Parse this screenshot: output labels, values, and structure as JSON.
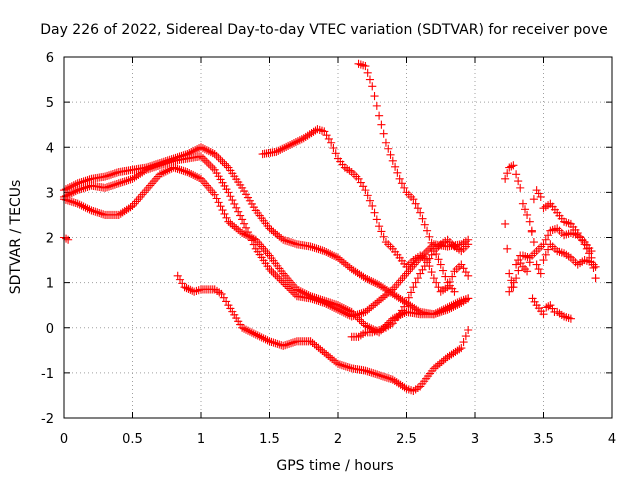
{
  "chart_data": {
    "type": "scatter",
    "title": "Day 226 of 2022, Sidereal Day-to-day VTEC variation (SDTVAR) for receiver pove",
    "xlabel": "GPS time / hours",
    "ylabel": "SDTVAR / TECUs",
    "xlim": [
      0,
      4
    ],
    "ylim": [
      -2,
      6
    ],
    "xticks": [
      "0",
      "0.5",
      "1",
      "1.5",
      "2",
      "2.5",
      "3",
      "3.5",
      "4"
    ],
    "yticks": [
      "-2",
      "-1",
      "0",
      "1",
      "2",
      "3",
      "4",
      "5",
      "6"
    ],
    "grid": true,
    "marker": "+",
    "color": "#ff0000",
    "series": [
      {
        "x": [
          0.0,
          0.1,
          0.2,
          0.3,
          0.4,
          0.5,
          0.6,
          0.7,
          0.8,
          0.9,
          1.0,
          1.1,
          1.2,
          1.3,
          1.4,
          1.5,
          1.6,
          1.7,
          1.8,
          1.9,
          2.0,
          2.1,
          2.2,
          2.3,
          2.4,
          2.5,
          2.6,
          2.7,
          2.8,
          2.9,
          2.95
        ],
        "values": [
          3.05,
          3.2,
          3.3,
          3.35,
          3.45,
          3.5,
          3.55,
          3.65,
          3.75,
          3.85,
          4.0,
          3.85,
          3.55,
          3.1,
          2.6,
          2.2,
          1.95,
          1.85,
          1.8,
          1.7,
          1.55,
          1.3,
          1.1,
          0.95,
          0.75,
          0.55,
          0.35,
          0.3,
          0.4,
          0.55,
          0.65
        ]
      },
      {
        "x": [
          0.0,
          0.1,
          0.2,
          0.3,
          0.4,
          0.5,
          0.6,
          0.7,
          0.8,
          0.9,
          1.0,
          1.1,
          1.2,
          1.3,
          1.4,
          1.5,
          1.6,
          1.7,
          1.8,
          1.9,
          2.0,
          2.1,
          2.2,
          2.3,
          2.4,
          2.5,
          2.6,
          2.7,
          2.8,
          2.9,
          2.95
        ],
        "values": [
          2.9,
          3.05,
          3.15,
          3.1,
          3.2,
          3.3,
          3.5,
          3.6,
          3.7,
          3.75,
          3.8,
          3.5,
          3.0,
          2.4,
          1.75,
          1.3,
          1.0,
          0.7,
          0.65,
          0.55,
          0.4,
          0.25,
          0.35,
          0.6,
          0.85,
          1.2,
          1.55,
          1.85,
          1.8,
          1.85,
          1.95
        ]
      },
      {
        "x": [
          0.0,
          0.1,
          0.2,
          0.3,
          0.4,
          0.5,
          0.6,
          0.7,
          0.8,
          0.9,
          1.0,
          1.1,
          1.2,
          1.3,
          1.4,
          1.5,
          1.6,
          1.7,
          1.8,
          1.9,
          2.0,
          2.1,
          2.2,
          2.3,
          2.4,
          2.5,
          2.6,
          2.7,
          2.8,
          2.9,
          2.95
        ],
        "values": [
          2.85,
          2.75,
          2.6,
          2.5,
          2.5,
          2.7,
          3.05,
          3.4,
          3.55,
          3.45,
          3.3,
          2.95,
          2.35,
          2.1,
          1.95,
          1.6,
          1.2,
          0.85,
          0.7,
          0.6,
          0.5,
          0.35,
          0.05,
          -0.1,
          0.2,
          0.35,
          0.3,
          0.3,
          0.45,
          0.6,
          0.65
        ]
      },
      {
        "x": [
          0.0,
          0.03
        ],
        "values": [
          2.0,
          1.95
        ]
      },
      {
        "x": [
          0.83,
          0.88,
          0.95,
          1.0,
          1.1,
          1.15,
          1.2,
          1.3,
          1.4,
          1.5,
          1.6,
          1.7,
          1.8,
          1.9,
          2.0,
          2.1,
          2.2,
          2.3,
          2.4,
          2.5,
          2.55,
          2.6,
          2.7,
          2.8,
          2.9,
          2.95
        ],
        "values": [
          1.15,
          0.9,
          0.8,
          0.85,
          0.85,
          0.75,
          0.5,
          0.0,
          -0.15,
          -0.3,
          -0.4,
          -0.3,
          -0.3,
          -0.55,
          -0.8,
          -0.9,
          -0.95,
          -1.05,
          -1.15,
          -1.35,
          -1.4,
          -1.3,
          -0.9,
          -0.65,
          -0.45,
          -0.05
        ]
      },
      {
        "x": [
          1.45,
          1.55,
          1.65,
          1.75,
          1.85,
          1.9,
          1.95,
          2.0,
          2.05,
          2.1,
          2.15,
          2.2,
          2.25,
          2.3,
          2.35,
          2.4,
          2.45,
          2.5,
          2.55,
          2.6,
          2.65,
          2.7,
          2.75,
          2.8,
          2.85,
          2.9,
          2.95
        ],
        "values": [
          3.85,
          3.9,
          4.05,
          4.2,
          4.4,
          4.35,
          4.1,
          3.75,
          3.55,
          3.45,
          3.3,
          3.05,
          2.7,
          2.25,
          1.9,
          1.75,
          1.55,
          1.35,
          1.5,
          1.6,
          1.5,
          1.1,
          0.8,
          0.9,
          1.25,
          1.4,
          1.15
        ]
      },
      {
        "x": [
          2.15,
          2.2,
          2.25,
          2.3,
          2.35,
          2.4,
          2.45,
          2.5,
          2.55,
          2.6,
          2.65,
          2.7,
          2.75,
          2.8,
          2.85
        ],
        "values": [
          5.85,
          5.8,
          5.35,
          4.7,
          4.1,
          3.7,
          3.3,
          3.0,
          2.85,
          2.55,
          2.15,
          1.75,
          1.4,
          1.0,
          0.8
        ]
      },
      {
        "x": [
          2.1,
          2.15,
          2.2,
          2.25,
          2.3,
          2.35,
          2.4,
          2.45,
          2.5,
          2.55,
          2.6,
          2.65,
          2.7,
          2.75,
          2.8,
          2.85,
          2.9,
          2.95
        ],
        "values": [
          -0.2,
          -0.2,
          -0.1,
          -0.1,
          -0.05,
          0.0,
          0.1,
          0.3,
          0.55,
          0.9,
          1.2,
          1.45,
          1.7,
          1.85,
          1.95,
          1.8,
          1.7,
          1.85
        ]
      },
      {
        "x": [
          3.22,
          3.25,
          3.28,
          3.3,
          3.33,
          3.35,
          3.38,
          3.4,
          3.43,
          3.45,
          3.48,
          3.5,
          3.55,
          3.6,
          3.65,
          3.7,
          3.75,
          3.8,
          3.85,
          3.88
        ],
        "values": [
          3.3,
          3.55,
          3.6,
          3.4,
          3.1,
          2.75,
          2.5,
          2.35,
          1.9,
          1.4,
          1.2,
          1.5,
          1.85,
          1.7,
          1.65,
          1.55,
          1.4,
          1.5,
          1.45,
          1.35
        ]
      },
      {
        "x": [
          3.22,
          3.25,
          3.28,
          3.3,
          3.33,
          3.35,
          3.38,
          3.4,
          3.43,
          3.45,
          3.48,
          3.5,
          3.55,
          3.6,
          3.65,
          3.7,
          3.75,
          3.8,
          3.85,
          3.88
        ],
        "values": [
          2.3,
          1.2,
          0.9,
          1.4,
          1.6,
          1.35,
          1.25,
          1.45,
          2.85,
          3.05,
          2.9,
          2.65,
          2.75,
          2.55,
          2.35,
          2.3,
          2.1,
          1.85,
          1.55,
          1.1
        ]
      },
      {
        "x": [
          3.25,
          3.3,
          3.35,
          3.4,
          3.45,
          3.5,
          3.55,
          3.6,
          3.65,
          3.7,
          3.75,
          3.8,
          3.85,
          3.88
        ],
        "values": [
          0.8,
          1.1,
          1.6,
          1.55,
          1.7,
          1.85,
          2.15,
          2.2,
          2.05,
          2.1,
          2.05,
          1.9,
          1.7,
          1.1
        ]
      },
      {
        "x": [
          3.42,
          3.45,
          3.5,
          3.52,
          3.55,
          3.58,
          3.6,
          3.65,
          3.7
        ],
        "values": [
          0.65,
          0.5,
          0.3,
          0.45,
          0.5,
          0.35,
          0.35,
          0.25,
          0.2
        ]
      }
    ]
  }
}
